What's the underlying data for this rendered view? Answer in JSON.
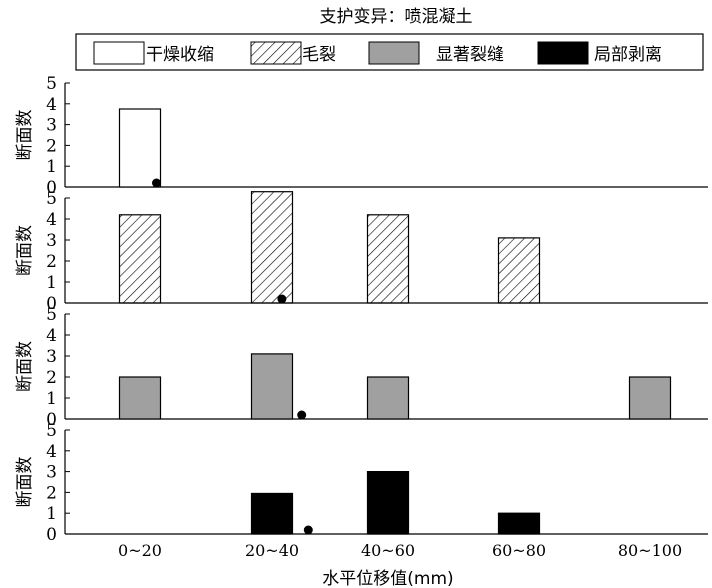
{
  "chart_data": {
    "type": "bar",
    "title": "支护变异：喷混凝土",
    "xlabel": "水平位移值(mm)",
    "ylabel": "断面数",
    "categories": [
      "0~20",
      "20~40",
      "40~60",
      "60~80",
      "80~100"
    ],
    "ylim": [
      0,
      5
    ],
    "yticks": [
      "0",
      "1",
      "2",
      "3",
      "4",
      "5"
    ],
    "legend_position": "top",
    "grid": false,
    "series": [
      {
        "name": "干燥收缩",
        "values": [
          3.75,
          null,
          null,
          null,
          null
        ],
        "marker_x": 12.5,
        "color": "#ffffff",
        "fill": "outline"
      },
      {
        "name": "毛裂",
        "values": [
          4.2,
          5.3,
          4.2,
          3.1,
          null
        ],
        "marker_x": 31.5,
        "color": "#ffffff",
        "fill": "hatched"
      },
      {
        "name": "显著裂缝",
        "values": [
          2.0,
          3.1,
          2.0,
          null,
          2.0
        ],
        "marker_x": 34.5,
        "color": "#a0a0a0",
        "fill": "solid"
      },
      {
        "name": "局部剥离",
        "values": [
          null,
          1.95,
          3.0,
          1.0,
          null
        ],
        "marker_x": 35.5,
        "color": "#000000",
        "fill": "solid"
      }
    ]
  }
}
